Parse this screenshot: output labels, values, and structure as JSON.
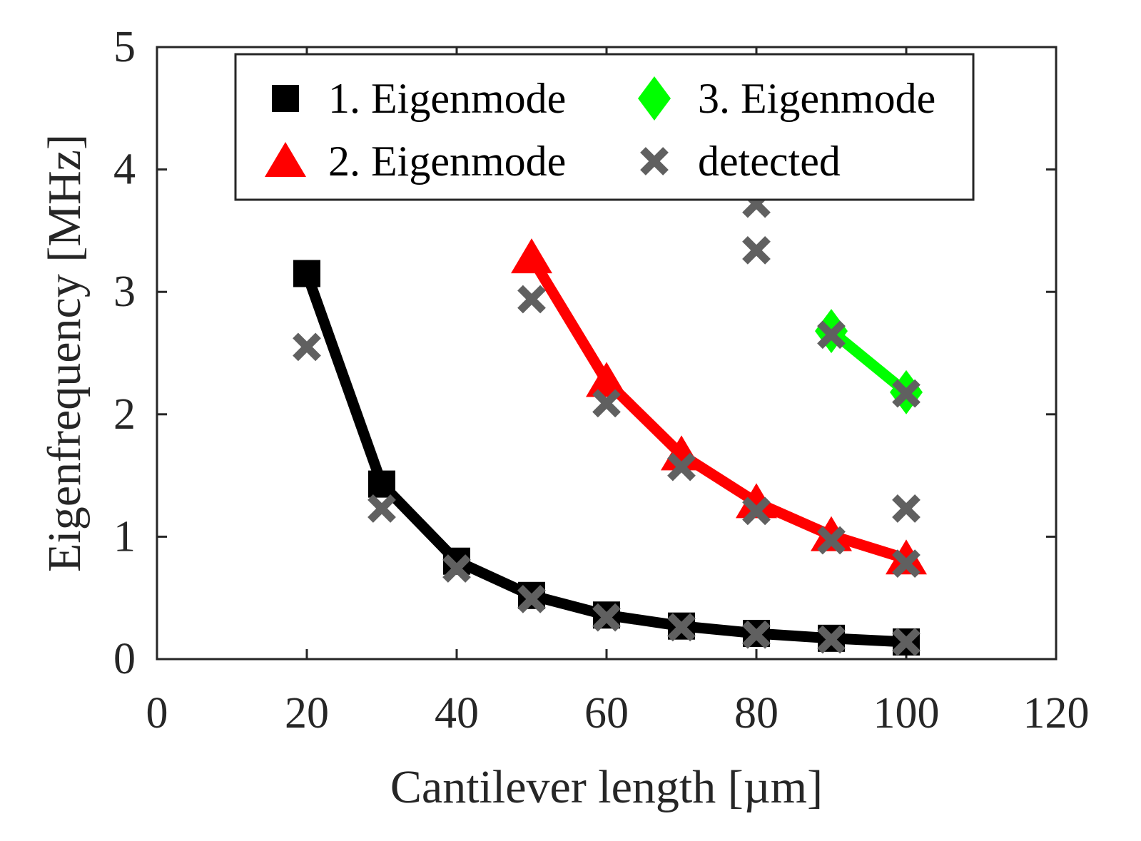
{
  "chart_data": {
    "type": "line",
    "title": "",
    "xlabel": "Cantilever length [µm]",
    "ylabel": "Eigenfrequency [MHz]",
    "xlim": [
      0,
      120
    ],
    "ylim": [
      0,
      5
    ],
    "xticks": [
      0,
      20,
      40,
      60,
      80,
      100,
      120
    ],
    "yticks": [
      0,
      1,
      2,
      3,
      4,
      5
    ],
    "grid": false,
    "legend_position": "top",
    "series": [
      {
        "name": "1. Eigenmode",
        "marker": "square",
        "color": "#000000",
        "line": true,
        "x": [
          20,
          30,
          40,
          50,
          60,
          70,
          80,
          90,
          100
        ],
        "y": [
          3.15,
          1.43,
          0.8,
          0.52,
          0.36,
          0.27,
          0.21,
          0.17,
          0.14
        ]
      },
      {
        "name": "2. Eigenmode",
        "marker": "triangle",
        "color": "#ff0000",
        "line": true,
        "x": [
          50,
          60,
          70,
          80,
          90,
          100
        ],
        "y": [
          3.28,
          2.27,
          1.67,
          1.28,
          1.01,
          0.82
        ]
      },
      {
        "name": "3. Eigenmode",
        "marker": "diamond",
        "color": "#00ff00",
        "line": true,
        "x": [
          90,
          100
        ],
        "y": [
          2.68,
          2.18
        ]
      },
      {
        "name": "detected",
        "marker": "x",
        "color": "#606060",
        "line": false,
        "x": [
          20,
          30,
          40,
          50,
          60,
          70,
          80,
          80,
          80,
          90,
          100,
          100,
          100,
          100
        ],
        "y": [
          2.55,
          1.23,
          0.74,
          0.49,
          0.34,
          0.26,
          0.2,
          1.21,
          3.34,
          2.65,
          0.14,
          0.78,
          1.23,
          2.17
        ]
      }
    ],
    "extra_points_clipped": [
      {
        "series": "detected",
        "x": 80,
        "y": 3.72
      },
      {
        "series": "detected",
        "x": 90,
        "y": 0.97
      },
      {
        "series": "detected",
        "x": 90,
        "y": 0.16
      },
      {
        "series": "detected",
        "x": 70,
        "y": 1.57
      },
      {
        "series": "detected",
        "x": 60,
        "y": 2.09
      },
      {
        "series": "detected",
        "x": 50,
        "y": 2.94
      }
    ]
  }
}
